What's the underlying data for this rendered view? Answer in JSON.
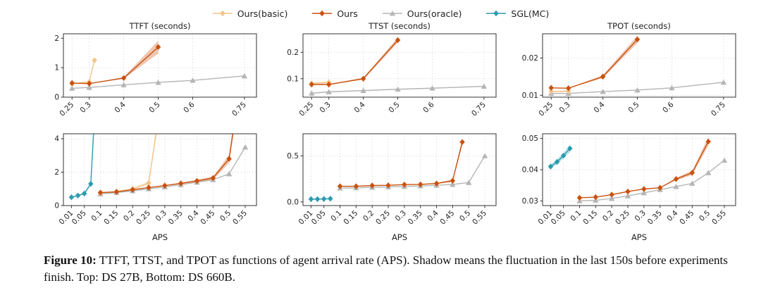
{
  "figure": {
    "legend": [
      {
        "label": "Ours(basic)",
        "color": "#f3c488",
        "marker": "diamond"
      },
      {
        "label": "Ours",
        "color": "#c9510e",
        "marker": "diamond"
      },
      {
        "label": "Ours(oracle)",
        "color": "#b5b5b5",
        "marker": "triangle"
      },
      {
        "label": "SGL(MC)",
        "color": "#2a9bb0",
        "marker": "diamond"
      }
    ],
    "caption": {
      "label": "Figure 10:",
      "text": " TTFT, TTST, and TPOT as functions of agent arrival rate (APS). Shadow means the fluctuation in the last 150s before experiments finish. Top: DS 27B, Bottom: DS 660B."
    }
  },
  "chart_data": [
    {
      "type": "line",
      "title": "TTFT (seconds)",
      "xlabel": "",
      "xlim": [
        0.225,
        0.785
      ],
      "ylim": [
        0,
        2.15
      ],
      "xticks": [
        0.25,
        0.3,
        0.4,
        0.5,
        0.6,
        0.75
      ],
      "xtick_labels": [
        "0.25",
        "0.3",
        "0.4",
        "0.5",
        "0.6",
        "0.75"
      ],
      "yticks": [
        0,
        1,
        2
      ],
      "ytick_labels": [
        "0",
        "1",
        "2"
      ],
      "series": [
        {
          "name": "Ours(oracle)",
          "color": "#b5b5b5",
          "marker": "triangle",
          "x": [
            0.25,
            0.3,
            0.4,
            0.5,
            0.6,
            0.75
          ],
          "y": [
            0.3,
            0.33,
            0.42,
            0.5,
            0.57,
            0.72
          ]
        },
        {
          "name": "Ours(basic)",
          "color": "#f3c488",
          "marker": "diamond",
          "x": [
            0.25,
            0.3,
            0.315
          ],
          "y": [
            0.45,
            0.52,
            1.25
          ],
          "band_hw": [
            0,
            0.02,
            0.1
          ]
        },
        {
          "name": "Ours",
          "color": "#c9510e",
          "marker": "diamond",
          "x": [
            0.25,
            0.3,
            0.4,
            0.5
          ],
          "y": [
            0.48,
            0.46,
            0.65,
            1.7
          ],
          "band_hw": [
            0,
            0,
            0.03,
            0.22
          ]
        }
      ]
    },
    {
      "type": "line",
      "title": "TTST (seconds)",
      "xlabel": "",
      "xlim": [
        0.225,
        0.785
      ],
      "ylim": [
        0.03,
        0.27
      ],
      "xticks": [
        0.25,
        0.3,
        0.4,
        0.5,
        0.6,
        0.75
      ],
      "xtick_labels": [
        "0.25",
        "0.3",
        "0.4",
        "0.5",
        "0.6",
        "0.75"
      ],
      "yticks": [
        0.1,
        0.2
      ],
      "ytick_labels": [
        "0.1",
        "0.2"
      ],
      "series": [
        {
          "name": "Ours(oracle)",
          "color": "#b5b5b5",
          "marker": "triangle",
          "x": [
            0.25,
            0.3,
            0.4,
            0.5,
            0.6,
            0.75
          ],
          "y": [
            0.045,
            0.05,
            0.055,
            0.06,
            0.064,
            0.071
          ]
        },
        {
          "name": "Ours(basic)",
          "color": "#f3c488",
          "marker": "diamond",
          "x": [
            0.25,
            0.3
          ],
          "y": [
            0.082,
            0.086
          ],
          "band_hw": [
            0.003,
            0.005
          ]
        },
        {
          "name": "Ours",
          "color": "#c9510e",
          "marker": "diamond",
          "x": [
            0.25,
            0.3,
            0.4,
            0.5
          ],
          "y": [
            0.078,
            0.078,
            0.1,
            0.246
          ],
          "band_hw": [
            0,
            0,
            0.004,
            0.01
          ]
        }
      ]
    },
    {
      "type": "line",
      "title": "TPOT (seconds)",
      "xlabel": "",
      "xlim": [
        0.225,
        0.785
      ],
      "ylim": [
        0.0095,
        0.0265
      ],
      "xticks": [
        0.25,
        0.3,
        0.4,
        0.5,
        0.6,
        0.75
      ],
      "xtick_labels": [
        "0.25",
        "0.3",
        "0.4",
        "0.5",
        "0.6",
        "0.75"
      ],
      "yticks": [
        0.01,
        0.02
      ],
      "ytick_labels": [
        "0.01",
        "0.02"
      ],
      "series": [
        {
          "name": "Ours(oracle)",
          "color": "#b5b5b5",
          "marker": "triangle",
          "x": [
            0.25,
            0.3,
            0.4,
            0.5,
            0.6,
            0.75
          ],
          "y": [
            0.0105,
            0.0105,
            0.011,
            0.0114,
            0.012,
            0.0135
          ]
        },
        {
          "name": "Ours(basic)",
          "color": "#f3c488",
          "marker": "diamond",
          "x": [
            0.25,
            0.3
          ],
          "y": [
            0.011,
            0.0111
          ],
          "band_hw": [
            0.0002,
            0.0003
          ]
        },
        {
          "name": "Ours",
          "color": "#c9510e",
          "marker": "diamond",
          "x": [
            0.25,
            0.3,
            0.4,
            0.5
          ],
          "y": [
            0.012,
            0.0119,
            0.015,
            0.025
          ],
          "band_hw": [
            0,
            0,
            0.0004,
            0.001
          ]
        }
      ]
    },
    {
      "type": "line",
      "title": "",
      "xlabel": "APS",
      "xlim": [
        -0.015,
        0.585
      ],
      "ylim": [
        0,
        4.3
      ],
      "xticks": [
        0.01,
        0.05,
        0.1,
        0.15,
        0.2,
        0.25,
        0.3,
        0.35,
        0.4,
        0.45,
        0.5,
        0.55
      ],
      "xtick_labels": [
        "0.01",
        "0.05",
        "0.1",
        "0.15",
        "0.2",
        "0.25",
        "0.3",
        "0.35",
        "0.4",
        "0.45",
        "0.5",
        "0.55"
      ],
      "yticks": [
        0,
        2,
        4
      ],
      "ytick_labels": [
        "0",
        "2",
        "4"
      ],
      "series": [
        {
          "name": "Ours(oracle)",
          "color": "#b5b5b5",
          "marker": "triangle",
          "x": [
            0.1,
            0.15,
            0.2,
            0.25,
            0.3,
            0.35,
            0.4,
            0.45,
            0.5,
            0.55
          ],
          "y": [
            0.7,
            0.78,
            0.88,
            1.0,
            1.12,
            1.25,
            1.4,
            1.55,
            1.9,
            3.5
          ]
        },
        {
          "name": "Ours(basic)",
          "color": "#f3c488",
          "marker": "diamond",
          "x": [
            0.1,
            0.15,
            0.2,
            0.25,
            0.275
          ],
          "y": [
            0.75,
            0.85,
            1.0,
            1.35,
            4.6
          ],
          "band_hw": [
            0,
            0.02,
            0.05,
            0.12,
            0.35
          ]
        },
        {
          "name": "SGL(MC)",
          "color": "#2a9bb0",
          "marker": "diamond",
          "x": [
            0.01,
            0.03,
            0.05,
            0.07,
            0.08
          ],
          "y": [
            0.5,
            0.6,
            0.72,
            1.3,
            4.8
          ],
          "band_hw": [
            0.02,
            0.03,
            0.05,
            0.1,
            0.25
          ]
        },
        {
          "name": "Ours",
          "color": "#c9510e",
          "marker": "diamond",
          "x": [
            0.1,
            0.15,
            0.2,
            0.25,
            0.3,
            0.35,
            0.4,
            0.45,
            0.5,
            0.515
          ],
          "y": [
            0.78,
            0.82,
            0.95,
            1.08,
            1.2,
            1.33,
            1.48,
            1.65,
            2.8,
            4.8
          ],
          "band_hw": [
            0,
            0,
            0,
            0,
            0.02,
            0.04,
            0.06,
            0.1,
            0.25,
            0.35
          ]
        }
      ]
    },
    {
      "type": "line",
      "title": "",
      "xlabel": "APS",
      "xlim": [
        -0.015,
        0.585
      ],
      "ylim": [
        -0.04,
        0.74
      ],
      "xticks": [
        0.01,
        0.05,
        0.1,
        0.15,
        0.2,
        0.25,
        0.3,
        0.35,
        0.4,
        0.45,
        0.5,
        0.55
      ],
      "xtick_labels": [
        "0.01",
        "0.05",
        "0.1",
        "0.15",
        "0.2",
        "0.25",
        "0.3",
        "0.35",
        "0.4",
        "0.45",
        "0.5",
        "0.55"
      ],
      "yticks": [
        0,
        0.5
      ],
      "ytick_labels": [
        "0.0",
        "0.5"
      ],
      "series": [
        {
          "name": "Ours(oracle)",
          "color": "#b5b5b5",
          "marker": "triangle",
          "x": [
            0.1,
            0.15,
            0.2,
            0.25,
            0.3,
            0.35,
            0.4,
            0.45,
            0.5,
            0.55
          ],
          "y": [
            0.15,
            0.153,
            0.158,
            0.163,
            0.168,
            0.173,
            0.18,
            0.19,
            0.21,
            0.5
          ]
        },
        {
          "name": "SGL(MC)",
          "color": "#2a9bb0",
          "marker": "diamond",
          "x": [
            0.01,
            0.03,
            0.05,
            0.07
          ],
          "y": [
            0.03,
            0.03,
            0.032,
            0.035
          ],
          "band_hw": [
            0.006,
            0.006,
            0.006,
            0.008
          ]
        },
        {
          "name": "Ours",
          "color": "#c9510e",
          "marker": "diamond",
          "x": [
            0.1,
            0.15,
            0.2,
            0.25,
            0.3,
            0.35,
            0.4,
            0.45,
            0.48
          ],
          "y": [
            0.17,
            0.17,
            0.178,
            0.18,
            0.188,
            0.19,
            0.2,
            0.23,
            0.65
          ],
          "band_hw": [
            0,
            0,
            0,
            0,
            0,
            0,
            0.006,
            0.015,
            0.035
          ]
        }
      ]
    },
    {
      "type": "line",
      "title": "",
      "xlabel": "APS",
      "xlim": [
        -0.015,
        0.585
      ],
      "ylim": [
        0.0285,
        0.0515
      ],
      "xticks": [
        0.01,
        0.05,
        0.1,
        0.15,
        0.2,
        0.25,
        0.3,
        0.35,
        0.4,
        0.45,
        0.5,
        0.55
      ],
      "xtick_labels": [
        "0.01",
        "0.05",
        "0.1",
        "0.15",
        "0.2",
        "0.25",
        "0.3",
        "0.35",
        "0.4",
        "0.45",
        "0.5",
        "0.55"
      ],
      "yticks": [
        0.03,
        0.04,
        0.05
      ],
      "ytick_labels": [
        "0.03",
        "0.04",
        "0.05"
      ],
      "series": [
        {
          "name": "Ours(oracle)",
          "color": "#b5b5b5",
          "marker": "triangle",
          "x": [
            0.1,
            0.15,
            0.2,
            0.25,
            0.3,
            0.35,
            0.4,
            0.45,
            0.5,
            0.55
          ],
          "y": [
            0.03,
            0.0302,
            0.0308,
            0.0316,
            0.0326,
            0.0336,
            0.0346,
            0.0356,
            0.039,
            0.043
          ]
        },
        {
          "name": "SGL(MC)",
          "color": "#2a9bb0",
          "marker": "diamond",
          "x": [
            0.01,
            0.03,
            0.05,
            0.07
          ],
          "y": [
            0.041,
            0.0425,
            0.0445,
            0.0468
          ],
          "band_hw": [
            0.0007,
            0.0008,
            0.0009,
            0.0012
          ]
        },
        {
          "name": "Ours",
          "color": "#c9510e",
          "marker": "diamond",
          "x": [
            0.1,
            0.15,
            0.2,
            0.25,
            0.3,
            0.35,
            0.4,
            0.45,
            0.5
          ],
          "y": [
            0.031,
            0.0312,
            0.032,
            0.033,
            0.0338,
            0.0342,
            0.037,
            0.039,
            0.049
          ],
          "band_hw": [
            0,
            0,
            0,
            0,
            0,
            0,
            0.0004,
            0.0007,
            0.0014
          ]
        }
      ]
    }
  ]
}
